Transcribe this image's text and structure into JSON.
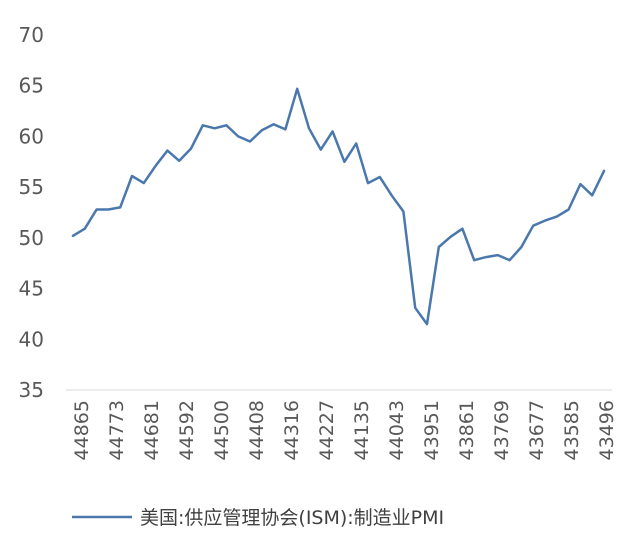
{
  "chart_data": {
    "type": "line",
    "title": "",
    "xlabel": "",
    "ylabel": "",
    "ylim": [
      35,
      70
    ],
    "y_ticks": [
      "35",
      "40",
      "45",
      "50",
      "55",
      "60",
      "65",
      "70"
    ],
    "x_tick_labels": [
      "44865",
      "44773",
      "44681",
      "44592",
      "44500",
      "44408",
      "44316",
      "44227",
      "44135",
      "44043",
      "43951",
      "43861",
      "43769",
      "43677",
      "43585",
      "43496"
    ],
    "legend_position": "bottom",
    "grid": false,
    "series": [
      {
        "name": "美国:供应管理协会(ISM):制造业PMI",
        "color": "#4a78ad",
        "values": [
          50.2,
          50.9,
          52.8,
          52.8,
          53.0,
          56.1,
          55.4,
          57.1,
          58.6,
          57.6,
          58.8,
          61.1,
          60.8,
          61.1,
          60.0,
          59.5,
          60.6,
          61.2,
          60.7,
          64.7,
          60.8,
          58.7,
          60.5,
          57.5,
          59.3,
          55.4,
          56.0,
          54.2,
          52.6,
          43.1,
          41.5,
          49.1,
          50.1,
          50.9,
          47.8,
          48.1,
          48.3,
          47.8,
          49.1,
          51.2,
          51.7,
          52.1,
          52.8,
          55.3,
          54.2,
          56.6
        ]
      }
    ]
  }
}
